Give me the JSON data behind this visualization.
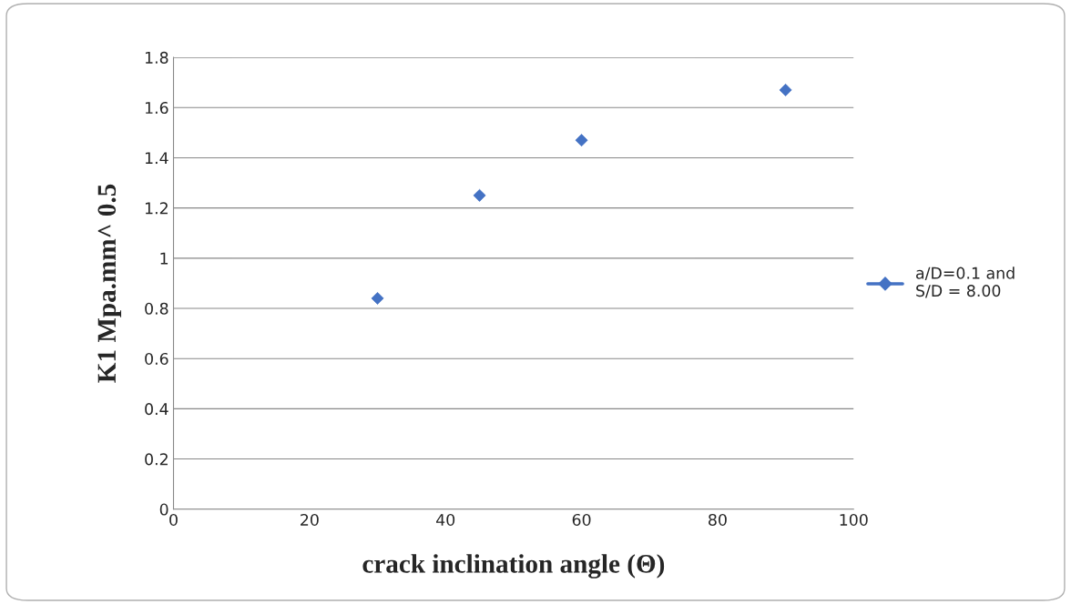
{
  "chart_data": {
    "type": "scatter",
    "xlabel": "crack inclination angle (Θ)",
    "ylabel": "K1 Mpa.mm^ 0.5",
    "x": [
      30,
      45,
      60,
      90
    ],
    "series": [
      {
        "name": "a/D=0.1 and\nS/D = 8.00",
        "color": "#4472c4",
        "values": [
          0.84,
          1.25,
          1.47,
          1.67
        ]
      }
    ],
    "xlim": [
      0,
      100
    ],
    "xticks": [
      0,
      20,
      40,
      60,
      80,
      100
    ],
    "ylim": [
      0,
      1.8
    ],
    "yticks": [
      0,
      {
        "value": 0.2,
        "label": "0.2"
      },
      {
        "value": 0.4,
        "label": "0.4"
      },
      {
        "value": 0.6,
        "label": "0.6"
      },
      {
        "value": 0.8,
        "label": "0.8"
      },
      1,
      {
        "value": 1.2,
        "label": "1.2"
      },
      {
        "value": 1.4,
        "label": "1.4"
      },
      {
        "value": 1.6,
        "label": "1.6"
      },
      {
        "value": 1.8,
        "label": "1.8"
      }
    ],
    "grid": "y",
    "legend": "right",
    "marker": "diamond"
  }
}
